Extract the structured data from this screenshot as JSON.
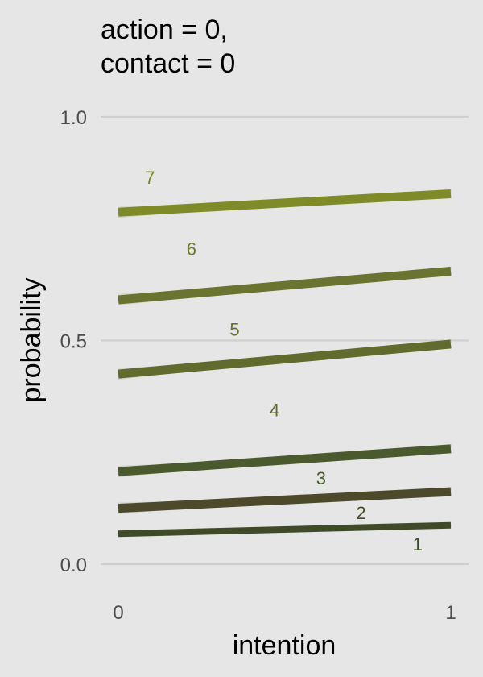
{
  "chart_data": {
    "type": "line",
    "title_lines": [
      "action = 0,",
      "contact = 0"
    ],
    "xlabel": "intention",
    "ylabel": "probability",
    "xlim": [
      0,
      1
    ],
    "ylim": [
      0,
      1
    ],
    "x_ticks": [
      0,
      1
    ],
    "x_tick_labels": [
      "0",
      "1"
    ],
    "y_ticks": [
      0,
      0.5,
      1
    ],
    "y_tick_labels": [
      "0.0",
      "0.5",
      "1.0"
    ],
    "grid": "horizontal",
    "series": [
      {
        "label": "1",
        "x": [
          0,
          1
        ],
        "y": [
          0.068,
          0.087
        ],
        "color": "#3d4a26",
        "label_pos": [
          0.9,
          0.045
        ]
      },
      {
        "label": "2",
        "x": [
          0,
          1
        ],
        "y": [
          0.125,
          0.162
        ],
        "color": "#4a4a26",
        "label_pos": [
          0.73,
          0.115
        ]
      },
      {
        "label": "3",
        "x": [
          0,
          1
        ],
        "y": [
          0.207,
          0.258
        ],
        "color": "#465b2a",
        "label_pos": [
          0.61,
          0.193
        ]
      },
      {
        "label": "4",
        "x": [
          0,
          1
        ],
        "y": [
          0.425,
          0.492
        ],
        "color": "#5b6a2c",
        "label_pos": [
          0.47,
          0.345
        ]
      },
      {
        "label": "5",
        "x": [
          0,
          1
        ],
        "y": [
          0.591,
          0.655
        ],
        "color": "#66722a",
        "label_pos": [
          0.35,
          0.525
        ]
      },
      {
        "label": "6",
        "x": [
          0,
          1
        ],
        "y": [
          0.787,
          0.828
        ],
        "color": "#6f7a29",
        "label_pos": [
          0.22,
          0.705
        ]
      },
      {
        "label": "7",
        "x": [
          0,
          1
        ],
        "y": [
          0.787,
          0.828
        ],
        "color": "#7b8827",
        "label_pos": [
          0.095,
          0.865
        ]
      }
    ],
    "band_lines": [
      {
        "x": [
          0,
          1
        ],
        "y": [
          0.068,
          0.087
        ],
        "color": "#3f4a28"
      },
      {
        "x": [
          0,
          1
        ],
        "y": [
          0.125,
          0.162
        ],
        "color": "#4c4a2b"
      },
      {
        "x": [
          0,
          1
        ],
        "y": [
          0.207,
          0.258
        ],
        "color": "#4a5a2e"
      },
      {
        "x": [
          0,
          1
        ],
        "y": [
          0.425,
          0.492
        ],
        "color": "#616b2e"
      },
      {
        "x": [
          0,
          1
        ],
        "y": [
          0.591,
          0.655
        ],
        "color": "#6a7330"
      },
      {
        "x": [
          0,
          1
        ],
        "y": [
          0.787,
          0.828
        ],
        "color": "#7e8b28"
      }
    ]
  }
}
